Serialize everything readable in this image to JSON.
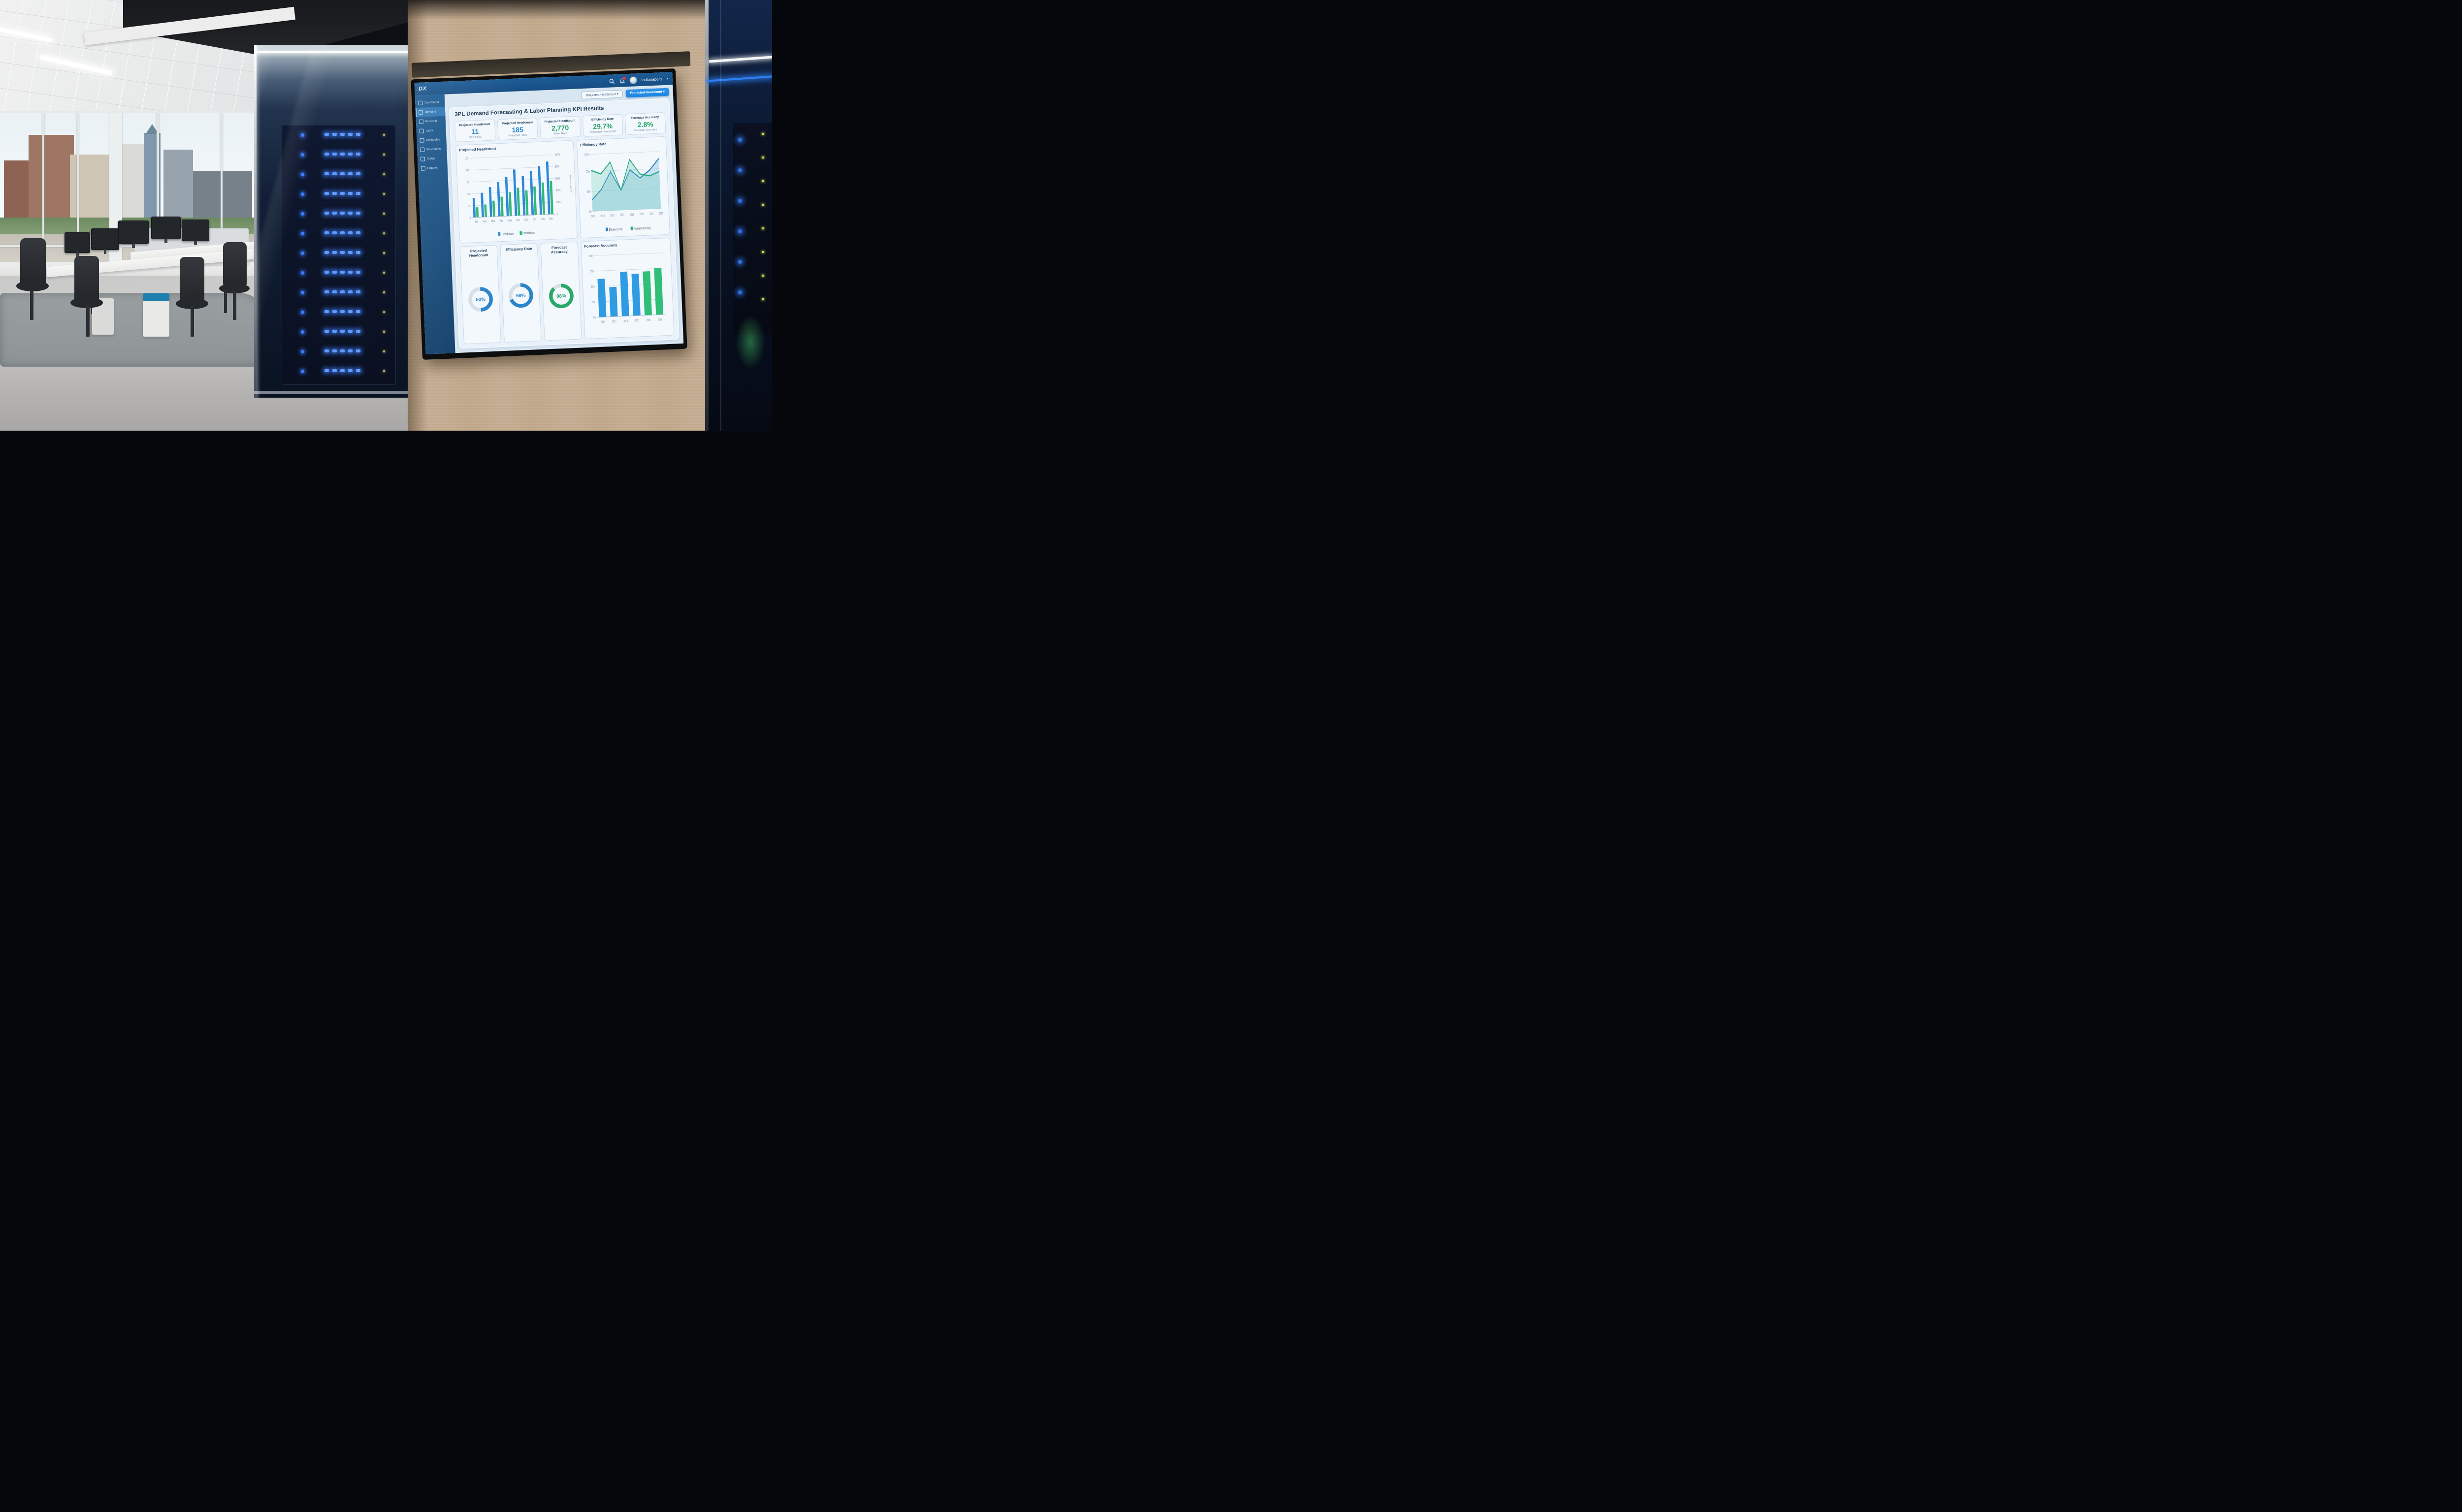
{
  "colors": {
    "blue": "#2d85c9",
    "green": "#27a567",
    "bar_blue": "#2f9be2",
    "bar_green": "#2fbf77",
    "line_blue": "#1f78b8",
    "line_green": "#2aa584",
    "accent_button": "#1f86e0",
    "topbar": "#174e84"
  },
  "topbar": {
    "logo_text": "DX",
    "location": "Indianapolis",
    "chevron": "▾",
    "has_notification_dot": true
  },
  "sidebar": {
    "items": [
      {
        "label": "Dashboard",
        "active": false
      },
      {
        "label": "Demand",
        "active": true
      },
      {
        "label": "Forecast",
        "active": false
      },
      {
        "label": "Labor",
        "active": false
      },
      {
        "label": "Schedules",
        "active": false
      },
      {
        "label": "Resources",
        "active": false
      },
      {
        "label": "Status",
        "active": false
      },
      {
        "label": "Reports",
        "active": false
      }
    ]
  },
  "header": {
    "title": "3PL Demand Forecasting & Labor Planning KPI Results",
    "filter_label": "Projected Headcount ▾",
    "action_label": "Projected Headcount ▾"
  },
  "kpis": [
    {
      "title": "Projected Headcount",
      "value": "11",
      "subtitle": "New Hires",
      "color": "#2d85c9"
    },
    {
      "title": "Projected Headcount",
      "value": "185",
      "subtitle": "Projected Hires",
      "color": "#2d85c9"
    },
    {
      "title": "Projected Headcount",
      "value": "2,770",
      "subtitle": "Team Rate",
      "color": "#27a567"
    },
    {
      "title": "Efficiency Rate",
      "value": "29.7%",
      "subtitle": "Projected Headcount",
      "color": "#27a567"
    },
    {
      "title": "Forecast Accuracy",
      "value": "2.8%",
      "subtitle": "Forecast Accuracy",
      "color": "#27a567"
    }
  ],
  "chart_data": [
    {
      "id": "monthly",
      "type": "bar",
      "title": "Projected Headcount",
      "categories": [
        "Jan",
        "Feb",
        "Mar",
        "Apr",
        "May",
        "Jun",
        "Sep",
        "Oct",
        "Nov",
        "Dec"
      ],
      "series": [
        {
          "name": "Headcount",
          "color": "#2f88d8",
          "values": [
            33,
            41,
            50,
            58,
            66,
            78,
            66,
            74,
            82,
            89
          ]
        },
        {
          "name": "Workforce",
          "color": "#33b977",
          "values": [
            17,
            21,
            27,
            33,
            40,
            47,
            42,
            48,
            54,
            56
          ]
        }
      ],
      "yticks_left": [
        "0",
        "20",
        "40",
        "60",
        "80",
        "100"
      ],
      "yticks_right": [
        "0",
        "20%",
        "40%",
        "60%",
        "80%",
        "100%"
      ],
      "ylabel_right": "Headcount %",
      "ylim": [
        0,
        100
      ],
      "grid": true,
      "legend_position": "bottom"
    },
    {
      "id": "efficiency",
      "type": "line",
      "title": "Efficiency Rate",
      "x": [
        "2012",
        "2013",
        "2014",
        "2015",
        "2016",
        "2018",
        "2019",
        "2020"
      ],
      "series": [
        {
          "name": "Efficiency Rate",
          "color": "#1f78b8",
          "fill": "rgba(120,185,225,0.35)",
          "values": [
            20,
            38,
            68,
            35,
            70,
            55,
            68,
            88
          ]
        },
        {
          "name": "Forecast Accuracy",
          "color": "#2aa584",
          "fill": "rgba(110,205,180,0.30)",
          "values": [
            72,
            65,
            85,
            35,
            88,
            62,
            58,
            65
          ]
        }
      ],
      "yticks": [
        {
          "v": 0,
          "label": "0%"
        },
        {
          "v": 35,
          "label": "35%"
        },
        {
          "v": 70,
          "label": "70%"
        },
        {
          "v": 100,
          "label": "100%"
        }
      ],
      "ylim": [
        0,
        100
      ],
      "grid": true,
      "legend_position": "bottom"
    },
    {
      "id": "donuts",
      "type": "donut",
      "gauges": [
        {
          "title": "Projected Headcount",
          "value": "50%",
          "pct": 50,
          "color": "#2d85c9"
        },
        {
          "title": "Efficiency Rate",
          "value": "69%",
          "pct": 69,
          "color": "#2d85c9"
        },
        {
          "title": "Forecast Accuracy",
          "value": "88%",
          "pct": 88,
          "color": "#2aa86a"
        }
      ]
    },
    {
      "id": "forecast",
      "type": "bar",
      "title": "Forecast Accuracy",
      "categories": [
        "2014",
        "2015",
        "2016",
        "2017",
        "2018",
        "2019"
      ],
      "values": [
        62,
        48,
        72,
        68,
        71,
        76
      ],
      "colors": [
        "#2f9be2",
        "#2f9be2",
        "#2f9be2",
        "#2f9be2",
        "#2fbf77",
        "#2fbf77"
      ],
      "yticks": [
        {
          "v": 0,
          "label": "0%"
        },
        {
          "v": 25,
          "label": "25%"
        },
        {
          "v": 50,
          "label": "50%"
        },
        {
          "v": 75,
          "label": "75%"
        },
        {
          "v": 100,
          "label": "100%"
        }
      ],
      "ylim": [
        0,
        100
      ],
      "grid": true
    }
  ]
}
